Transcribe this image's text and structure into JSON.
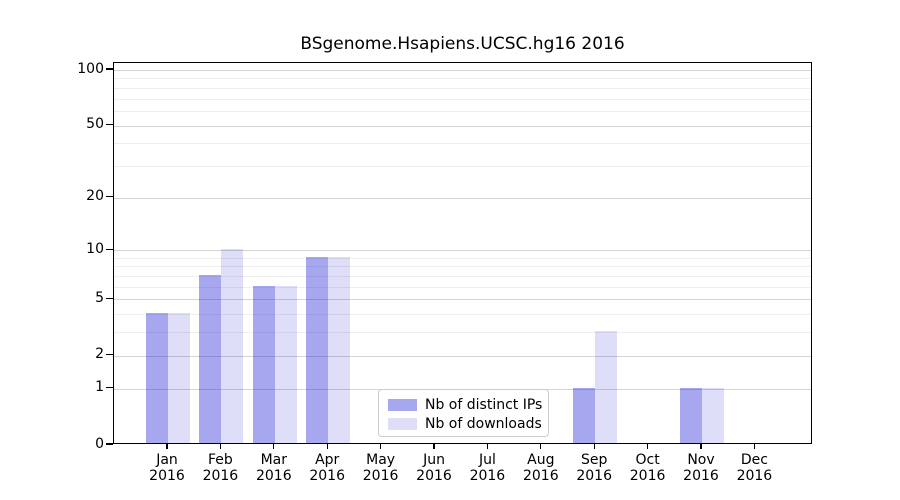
{
  "chart_data": {
    "type": "bar",
    "title": "BSgenome.Hsapiens.UCSC.hg16 2016",
    "categories": [
      "Jan",
      "Feb",
      "Mar",
      "Apr",
      "May",
      "Jun",
      "Jul",
      "Aug",
      "Sep",
      "Oct",
      "Nov",
      "Dec"
    ],
    "year_label": "2016",
    "series": [
      {
        "name": "Nb of distinct IPs",
        "values": [
          4,
          7,
          6,
          9,
          0,
          0,
          0,
          0,
          1,
          0,
          1,
          0
        ],
        "color_hex": "#a7a7f0",
        "fill": "rgba(35,35,217,0.40)"
      },
      {
        "name": "Nb of downloads",
        "values": [
          4,
          10,
          6,
          9,
          0,
          0,
          0,
          0,
          3,
          0,
          1,
          0
        ],
        "color_hex": "#dcdcf8",
        "fill": "rgba(35,35,217,0.15)"
      }
    ],
    "yscale": "log1p",
    "ylim": [
      0,
      100
    ],
    "y_ticks": [
      0,
      1,
      2,
      5,
      10,
      20,
      50,
      100
    ],
    "y_minor_gridlines": [
      3,
      4,
      6,
      7,
      8,
      9,
      30,
      40,
      60,
      70,
      80,
      90
    ],
    "grid": true,
    "legend_position": "inside lower-center",
    "xlabel": "",
    "ylabel": ""
  }
}
